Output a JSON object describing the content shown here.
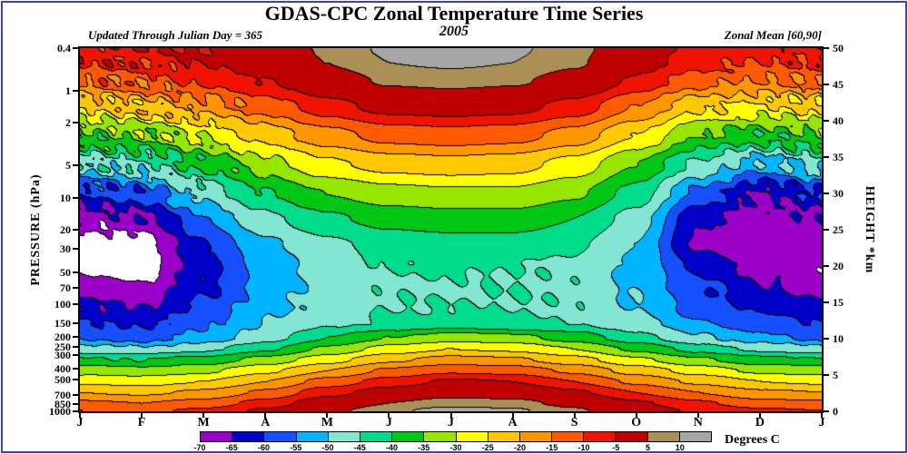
{
  "header": {
    "title": "GDAS-CPC Zonal Temperature Time Series",
    "year": "2005",
    "updated_note": "Updated Through Julian Day = 365",
    "zonal_note": "Zonal Mean [60,90]"
  },
  "axes": {
    "left_label": "PRESSURE (hPa)",
    "right_label": "HEIGHT *km",
    "month_labels": [
      "J",
      "F",
      "M",
      "A",
      "M",
      "J",
      "J",
      "A",
      "S",
      "O",
      "N",
      "D",
      "J"
    ],
    "pressure_ticks": [
      {
        "label": "0.4",
        "km": 50
      },
      {
        "label": "1",
        "km": 44.1
      },
      {
        "label": "2",
        "km": 39.7
      },
      {
        "label": "5",
        "km": 33.9
      },
      {
        "label": "10",
        "km": 29.4
      },
      {
        "label": "20",
        "km": 25
      },
      {
        "label": "30",
        "km": 22.4
      },
      {
        "label": "50",
        "km": 19.1
      },
      {
        "label": "70",
        "km": 17
      },
      {
        "label": "100",
        "km": 14.7
      },
      {
        "label": "150",
        "km": 12.1
      },
      {
        "label": "200",
        "km": 10.3
      },
      {
        "label": "250",
        "km": 8.9
      },
      {
        "label": "300",
        "km": 7.7
      },
      {
        "label": "400",
        "km": 5.9
      },
      {
        "label": "500",
        "km": 4.4
      },
      {
        "label": "700",
        "km": 2.3
      },
      {
        "label": "850",
        "km": 1
      },
      {
        "label": "1000",
        "km": 0
      }
    ],
    "height_ticks": [
      0,
      5,
      10,
      15,
      20,
      25,
      30,
      35,
      40,
      45,
      50
    ]
  },
  "colorbar": {
    "units_label": "Degrees C"
  },
  "chart_data": {
    "type": "filled_contour",
    "title": "GDAS-CPC Zonal Temperature Time Series, 2005, Zonal Mean [60,90]",
    "x_axis": "Month (January through January)",
    "y_axis_left": "Pressure (hPa), 0.4 at top to 1000 at bottom, log scale",
    "y_axis_right": "Height (km), 0 to 50, linear",
    "units": "Degrees C",
    "height_range_km": [
      0,
      50
    ],
    "contour_interval_c": 5,
    "boundaries": [
      -70,
      -65,
      -60,
      -55,
      -50,
      -45,
      -40,
      -35,
      -30,
      -25,
      -20,
      -15,
      -10,
      -5,
      5,
      10
    ],
    "colors": [
      "#FFFFFF",
      "#9A00C8",
      "#0000C8",
      "#1450FF",
      "#00B4FF",
      "#82E6D2",
      "#00DC8C",
      "#00C814",
      "#96E600",
      "#FFFF00",
      "#FFC800",
      "#FF9600",
      "#FF5A00",
      "#F01400",
      "#BE0000",
      "#AA9055",
      "#A6A6A6"
    ],
    "grid": {
      "months": [
        "Jan",
        "Feb",
        "Mar",
        "Apr",
        "May",
        "Jun",
        "Jul",
        "Aug",
        "Sep",
        "Oct",
        "Nov",
        "Dec",
        "Jan"
      ],
      "heights_km": [
        0,
        1,
        2.5,
        4,
        5.5,
        7,
        8.5,
        10,
        12,
        14.5,
        17,
        20,
        23,
        26.5,
        30,
        34,
        38,
        42,
        45.5,
        48,
        50
      ],
      "temps_c": [
        [
          -10,
          -11,
          -9,
          -4,
          3,
          9,
          12,
          11,
          6,
          -1,
          -6,
          -9,
          -10
        ],
        [
          -14,
          -15,
          -13,
          -8,
          -1,
          5,
          8,
          7,
          3,
          -4,
          -9,
          -13,
          -14
        ],
        [
          -20,
          -21,
          -19,
          -14,
          -7,
          -2,
          2,
          1,
          -4,
          -10,
          -15,
          -19,
          -20
        ],
        [
          -26,
          -27,
          -25,
          -20,
          -13,
          -8,
          -4,
          -5,
          -10,
          -16,
          -21,
          -25,
          -26
        ],
        [
          -32,
          -33,
          -31,
          -26,
          -20,
          -14,
          -11,
          -12,
          -16,
          -22,
          -27,
          -31,
          -32
        ],
        [
          -39,
          -40,
          -38,
          -33,
          -27,
          -21,
          -18,
          -19,
          -23,
          -29,
          -34,
          -38,
          -39
        ],
        [
          -48,
          -49,
          -46,
          -41,
          -34,
          -28,
          -25,
          -26,
          -30,
          -36,
          -42,
          -46,
          -48
        ],
        [
          -56,
          -57,
          -53,
          -47,
          -40,
          -35,
          -32,
          -33,
          -37,
          -43,
          -49,
          -53,
          -56
        ],
        [
          -60,
          -61,
          -56,
          -50,
          -46,
          -44,
          -43,
          -44,
          -45,
          -48,
          -54,
          -58,
          -60
        ],
        [
          -64,
          -65,
          -59,
          -52,
          -48,
          -45,
          -45,
          -45,
          -46,
          -50,
          -57,
          -61,
          -63
        ],
        [
          -68,
          -69,
          -61,
          -53,
          -48,
          -46,
          -46,
          -45,
          -46,
          -51,
          -59,
          -64,
          -67
        ],
        [
          -72,
          -73,
          -62,
          -53,
          -47,
          -45,
          -44,
          -45,
          -46,
          -51,
          -61,
          -67,
          -69
        ],
        [
          -73,
          -72,
          -60,
          -51,
          -46,
          -43,
          -42,
          -42,
          -44,
          -50,
          -66,
          -69,
          -68
        ],
        [
          -68,
          -66,
          -55,
          -46,
          -41,
          -38,
          -37,
          -37,
          -40,
          -47,
          -64,
          -67,
          -66
        ],
        [
          -60,
          -58,
          -48,
          -40,
          -35,
          -32,
          -31,
          -31,
          -34,
          -42,
          -56,
          -66,
          -60
        ],
        [
          -48,
          -46,
          -39,
          -32,
          -26,
          -23,
          -22,
          -23,
          -27,
          -35,
          -46,
          -52,
          -48
        ],
        [
          -36,
          -34,
          -29,
          -23,
          -17,
          -13,
          -12,
          -13,
          -17,
          -25,
          -35,
          -38,
          -36
        ],
        [
          -24,
          -22,
          -18,
          -13,
          -7,
          -3,
          -2,
          -3,
          -7,
          -15,
          -24,
          -26,
          -24
        ],
        [
          -14,
          -12,
          -9,
          -5,
          1,
          6,
          7,
          6,
          2,
          -6,
          -13,
          -15,
          -14
        ],
        [
          -9,
          -8,
          -5,
          -1,
          5,
          10,
          11,
          10,
          6,
          -2,
          -8,
          -10,
          -9
        ],
        [
          -7,
          -6,
          -4,
          0,
          6,
          11,
          12,
          11,
          7,
          -1,
          -6,
          -8,
          -7
        ]
      ]
    }
  }
}
